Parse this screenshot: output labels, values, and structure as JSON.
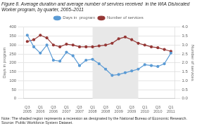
{
  "chart_data": {
    "type": "line",
    "title": [
      "Figure 8. Average duration and average number of services received  in the WIA Dislocated",
      "Worker program, by quarter, 2005–2011"
    ],
    "ylabel": "Days in program",
    "y2label": "Number of services",
    "annotations": [
      "Note: The shaded region represents a recession as designated by the National Bureau of Economic Research.",
      "Source: Public Workforce System Dataset."
    ],
    "x": [
      0,
      0.5,
      1,
      1.5,
      2,
      2.5,
      3,
      3.5,
      4,
      4.5,
      5,
      5.5,
      6,
      6.5,
      7,
      7.5,
      8,
      8.5,
      9,
      9.5,
      10,
      10.5,
      11
    ],
    "xlim": [
      -0.3,
      11.3
    ],
    "xticks": [
      {
        "value": 0,
        "label": "Q3\n2005"
      },
      {
        "value": 1,
        "label": "Q1\n2006"
      },
      {
        "value": 2,
        "label": "Q3\n2006"
      },
      {
        "value": 3,
        "label": "Q1\n2007"
      },
      {
        "value": 4,
        "label": "Q3\n2007"
      },
      {
        "value": 5,
        "label": "Q1\n2008"
      },
      {
        "value": 6,
        "label": "Q3\n2008"
      },
      {
        "value": 7,
        "label": "Q1\n2009"
      },
      {
        "value": 8,
        "label": "Q3\n2009"
      },
      {
        "value": 9,
        "label": "Q1\n2010"
      },
      {
        "value": 10,
        "label": "Q3\n2010"
      },
      {
        "value": 11,
        "label": "Q1\n2011"
      }
    ],
    "ylim": [
      0,
      400
    ],
    "yticks": [
      0,
      50,
      100,
      150,
      200,
      250,
      300,
      350,
      400
    ],
    "y2lim": [
      0.0,
      4.0
    ],
    "y2ticks": [
      {
        "value": 0,
        "label": "0.0"
      },
      0.5,
      {
        "value": 1,
        "label": "1.0"
      },
      1.5,
      {
        "value": 2,
        "label": "2.0"
      },
      2.5,
      {
        "value": 3,
        "label": "3.0"
      },
      3.5,
      {
        "value": 4,
        "label": "4.0"
      }
    ],
    "grid": true,
    "legend": "top",
    "shaded_region": {
      "start": 5,
      "end": 8.5,
      "color": "#e8e8e8"
    },
    "series": [
      {
        "name": "Days in  program",
        "color": "#5b9bd5",
        "marker": "circle",
        "axis": "y",
        "values": [
          355,
          290,
          255,
          300,
          215,
          210,
          260,
          240,
          185,
          215,
          220,
          195,
          165,
          130,
          135,
          145,
          155,
          165,
          190,
          185,
          180,
          195,
          255
        ]
      },
      {
        "name": "Number of services",
        "color": "#953735",
        "marker": "circle",
        "axis": "y2",
        "values": [
          3.2,
          3.3,
          3.55,
          3.4,
          3.0,
          2.9,
          3.05,
          3.0,
          2.9,
          2.9,
          2.9,
          2.95,
          3.0,
          3.1,
          3.35,
          3.45,
          3.3,
          3.1,
          3.0,
          2.9,
          2.85,
          2.75,
          2.65
        ]
      }
    ]
  }
}
